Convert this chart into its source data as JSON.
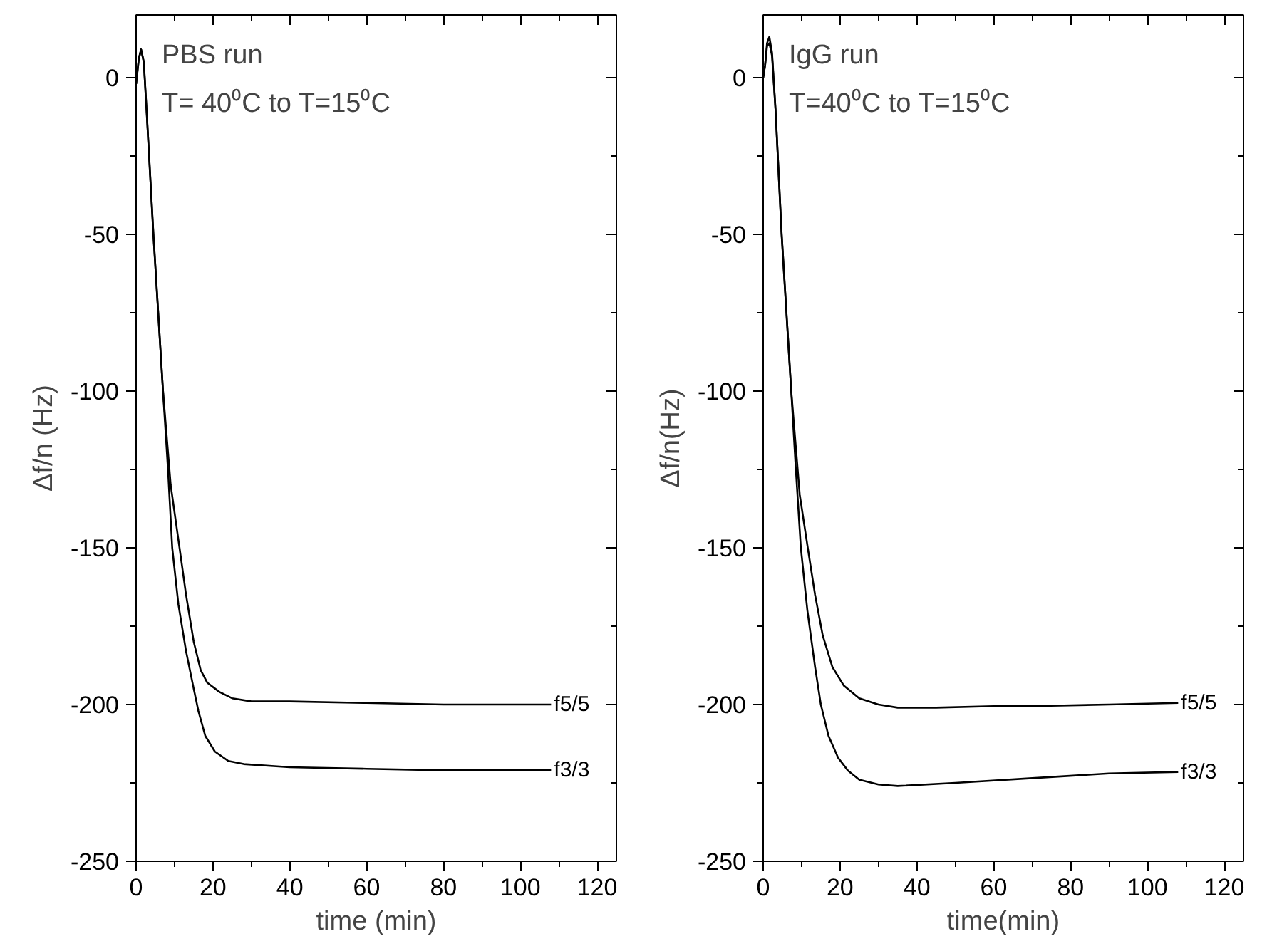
{
  "chart_data": [
    {
      "type": "line",
      "title": "PBS run",
      "subtitle": "T= 40⁰C to T=15⁰C",
      "xlabel": "time (min)",
      "ylabel": "Δf/n (Hz)",
      "xlim": [
        0,
        125
      ],
      "ylim": [
        -250,
        20
      ],
      "xticks": [
        0,
        {
          "value": 10,
          "label": null
        },
        20,
        {
          "value": 30,
          "label": null
        },
        40,
        {
          "value": 50,
          "label": null
        },
        60,
        {
          "value": 70,
          "label": null
        },
        80,
        {
          "value": 90,
          "label": null
        },
        100,
        {
          "value": 110,
          "label": null
        },
        120
      ],
      "yticks": [
        -250,
        {
          "value": -225,
          "label": null
        },
        -200,
        {
          "value": -175,
          "label": null
        },
        -150,
        {
          "value": -125,
          "label": null
        },
        -100,
        {
          "value": -75,
          "label": null
        },
        -50,
        {
          "value": -25,
          "label": null
        },
        0
      ],
      "grid": false,
      "legend": "right",
      "marker": "none",
      "line_style": "solid",
      "series": [
        {
          "name": "f5/5",
          "color": "#000000",
          "x": [
            0,
            0.7,
            1.3,
            2,
            2.8,
            4.5,
            7,
            9,
            11.3,
            13,
            15,
            16.8,
            18.5,
            21.7,
            25,
            30,
            40,
            60,
            80,
            108
          ],
          "values": [
            -2,
            6,
            9,
            5,
            -12,
            -50,
            -100,
            -130,
            -150,
            -165,
            -180,
            -189,
            -193,
            -196,
            -198,
            -199,
            -199,
            -199.5,
            -200,
            -200
          ]
        },
        {
          "name": "f3/3",
          "color": "#000000",
          "x": [
            0,
            0.7,
            1.3,
            2,
            2.8,
            4.5,
            7,
            8.3,
            9.4,
            11,
            13,
            15,
            16.2,
            18,
            20.5,
            24,
            28,
            40,
            60,
            80,
            108
          ],
          "values": [
            -2,
            6,
            9,
            5,
            -12,
            -50,
            -100,
            -125,
            -150,
            -168,
            -183,
            -195,
            -202,
            -210,
            -215,
            -218,
            -219,
            -220,
            -220.5,
            -221,
            -221
          ]
        }
      ]
    },
    {
      "type": "line",
      "title": "IgG run",
      "subtitle": "T=40⁰C to T=15⁰C",
      "xlabel": "time(min)",
      "ylabel": "Δf/n(Hz)",
      "xlim": [
        0,
        125
      ],
      "ylim": [
        -250,
        20
      ],
      "xticks": [
        0,
        {
          "value": 10,
          "label": null
        },
        20,
        {
          "value": 30,
          "label": null
        },
        40,
        {
          "value": 50,
          "label": null
        },
        60,
        {
          "value": 70,
          "label": null
        },
        80,
        {
          "value": 90,
          "label": null
        },
        100,
        {
          "value": 110,
          "label": null
        },
        120
      ],
      "yticks": [
        -250,
        {
          "value": -225,
          "label": null
        },
        -200,
        {
          "value": -175,
          "label": null
        },
        -150,
        {
          "value": -125,
          "label": null
        },
        -100,
        {
          "value": -75,
          "label": null
        },
        -50,
        {
          "value": -25,
          "label": null
        },
        0
      ],
      "grid": false,
      "legend": "right",
      "marker": "none",
      "line_style": "solid",
      "series": [
        {
          "name": "f5/5",
          "color": "#000000",
          "x": [
            0,
            0.5,
            1,
            1.6,
            2.3,
            3.2,
            4.8,
            7.3,
            9.5,
            11.6,
            13.5,
            15.5,
            18,
            21,
            25,
            30,
            35,
            45,
            60,
            70,
            90,
            108
          ],
          "values": [
            0,
            4,
            11,
            13,
            8,
            -10,
            -50,
            -100,
            -133,
            -150,
            -165,
            -178,
            -188,
            -194,
            -198,
            -200,
            -201,
            -201,
            -200.5,
            -200.5,
            -200,
            -199.5
          ]
        },
        {
          "name": "f3/3",
          "color": "#000000",
          "x": [
            0,
            0.5,
            1,
            1.6,
            2.3,
            3.2,
            4.8,
            7.3,
            8.5,
            9.8,
            11.5,
            13.5,
            15,
            17,
            19.5,
            22,
            25,
            30,
            35,
            50,
            70,
            90,
            108
          ],
          "values": [
            0,
            4,
            10,
            11,
            7,
            -10,
            -50,
            -100,
            -125,
            -150,
            -170,
            -188,
            -200,
            -210,
            -217,
            -221,
            -224,
            -225.5,
            -226,
            -225,
            -223.5,
            -222,
            -221.5
          ]
        }
      ]
    }
  ]
}
